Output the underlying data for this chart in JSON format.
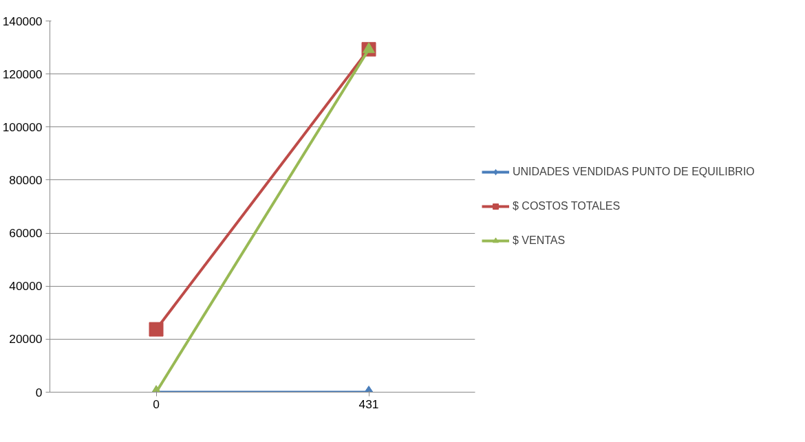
{
  "chart_data": {
    "type": "line",
    "categories": [
      "0",
      "431"
    ],
    "series": [
      {
        "name": "UNIDADES VENDIDAS PUNTO DE EQUILIBRIO",
        "color": "#4a7ebb",
        "values": [
          0,
          0
        ],
        "marker": "diamond"
      },
      {
        "name": "$ COSTOS TOTALES",
        "color": "#be4b48",
        "values": [
          23700,
          129300
        ],
        "marker": "square"
      },
      {
        "name": "$ VENTAS",
        "color": "#98b954",
        "values": [
          0,
          129300
        ],
        "marker": "triangle"
      }
    ],
    "ylim": [
      0,
      140000
    ],
    "yticks": [
      0,
      20000,
      40000,
      60000,
      80000,
      100000,
      120000,
      140000
    ],
    "grid": "y",
    "legend": "right",
    "line_style": "solid"
  }
}
